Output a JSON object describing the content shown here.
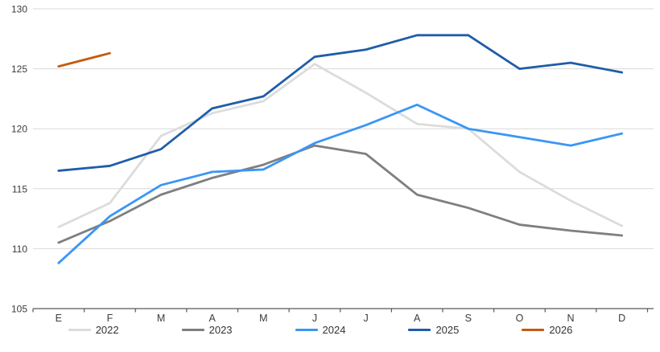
{
  "chart_data": {
    "type": "line",
    "title": "",
    "xlabel": "",
    "ylabel": "",
    "x_categories": [
      "E",
      "F",
      "M",
      "A",
      "M",
      "J",
      "J",
      "A",
      "S",
      "O",
      "N",
      "D"
    ],
    "y_axis": {
      "min": 105,
      "max": 130,
      "step": 5,
      "tick_labels": [
        "105",
        "110",
        "115",
        "120",
        "125",
        "130"
      ]
    },
    "grid": "horizontal",
    "legend_position": "bottom",
    "series": [
      {
        "name": "2022",
        "color": "#DCDCDC",
        "values": [
          111.8,
          113.8,
          119.4,
          121.3,
          122.3,
          125.4,
          123.0,
          120.4,
          120.0,
          116.4,
          114.0,
          111.9
        ]
      },
      {
        "name": "2023",
        "color": "#7F7F7F",
        "values": [
          110.5,
          112.3,
          114.5,
          115.9,
          117.0,
          118.6,
          117.9,
          114.5,
          113.4,
          112.0,
          111.5,
          111.1
        ]
      },
      {
        "name": "2024",
        "color": "#3A96F5",
        "values": [
          108.8,
          112.7,
          115.3,
          116.4,
          116.6,
          118.8,
          120.3,
          122.0,
          120.0,
          119.3,
          118.6,
          119.6
        ]
      },
      {
        "name": "2025",
        "color": "#1F5DA8",
        "values": [
          116.5,
          116.9,
          118.3,
          121.7,
          122.7,
          126.0,
          126.6,
          127.8,
          127.8,
          125.0,
          125.5,
          124.7
        ]
      },
      {
        "name": "2026",
        "color": "#C55A11",
        "values": [
          125.2,
          126.3,
          null,
          null,
          null,
          null,
          null,
          null,
          null,
          null,
          null,
          null
        ]
      }
    ]
  },
  "style": {
    "gridline_color": "#D9D9D9",
    "axis_line_color": "#595959",
    "tick_text_color": "#3b3b3b",
    "line_width": 2.8
  }
}
